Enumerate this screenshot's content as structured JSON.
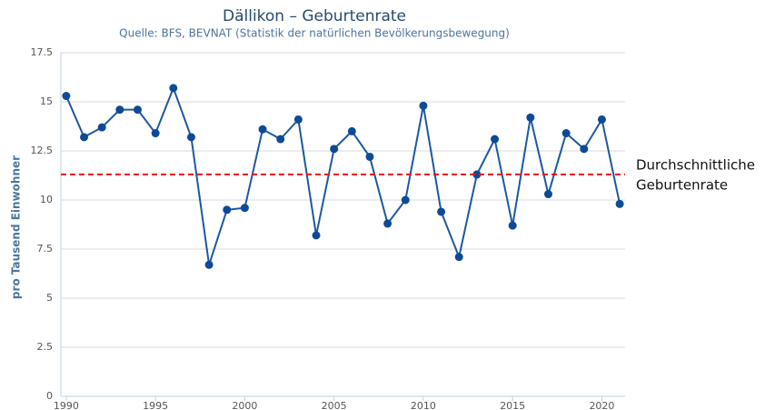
{
  "chart_data": {
    "type": "line",
    "title": "Dällikon – Geburtenrate",
    "subtitle": "Quelle: BFS, BEVNAT (Statistik der natürlichen Bevölkerungsbewegung)",
    "y_label": "pro Tausend Einwohner",
    "x": [
      1990,
      1991,
      1992,
      1993,
      1994,
      1995,
      1996,
      1997,
      1998,
      1999,
      2000,
      2001,
      2002,
      2003,
      2004,
      2005,
      2006,
      2007,
      2008,
      2009,
      2010,
      2011,
      2012,
      2013,
      2014,
      2015,
      2016,
      2017,
      2018,
      2019,
      2020,
      2021
    ],
    "series": [
      {
        "color": "#1c58a3",
        "values": [
          15.3,
          13.2,
          13.7,
          14.6,
          14.6,
          13.4,
          15.7,
          13.2,
          6.7,
          9.5,
          9.6,
          13.6,
          13.1,
          14.1,
          8.2,
          12.6,
          13.5,
          12.2,
          8.8,
          10.0,
          14.8,
          9.4,
          7.1,
          11.3,
          13.1,
          8.7,
          14.2,
          10.3,
          13.4,
          12.6,
          14.1,
          9.8
        ]
      }
    ],
    "xlim": [
      1989.7,
      2021.3
    ],
    "xticks": [
      1990,
      1995,
      2000,
      2005,
      2010,
      2015,
      2020
    ],
    "ylim": [
      0,
      17.5
    ],
    "yticks": [
      0,
      2.5,
      5,
      7.5,
      10,
      12.5,
      15,
      17.5
    ],
    "grid": true,
    "reference_line": {
      "value": 11.3,
      "color": "#e8141b",
      "label": [
        "Durchschnittliche",
        "Geburtenrate"
      ]
    }
  }
}
